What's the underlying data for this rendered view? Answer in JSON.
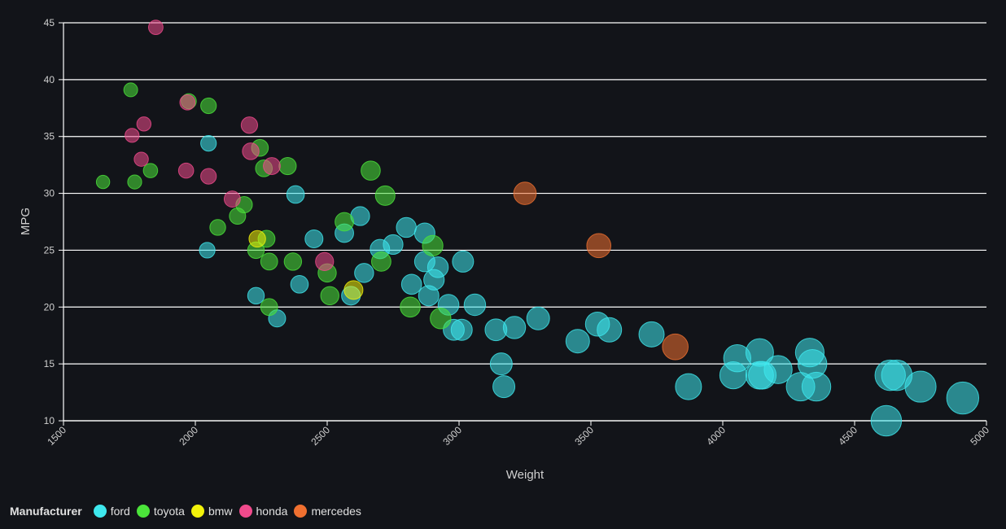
{
  "chart_data": {
    "type": "scatter",
    "xlabel": "Weight",
    "ylabel": "MPG",
    "xlim": [
      1500,
      5000
    ],
    "ylim": [
      10,
      45
    ],
    "x_ticks": [
      "1500",
      "2000",
      "2500",
      "3000",
      "3500",
      "4000",
      "4500",
      "5000"
    ],
    "y_ticks": [
      "10",
      "15",
      "20",
      "25",
      "30",
      "35",
      "40",
      "45"
    ],
    "grid": "horizontal",
    "legend": {
      "title": "Manufacturer",
      "placement": "bottom-left",
      "entries": [
        {
          "name": "ford",
          "color": "#3ee8ee"
        },
        {
          "name": "toyota",
          "color": "#4be43a"
        },
        {
          "name": "bmw",
          "color": "#f2f20a"
        },
        {
          "name": "honda",
          "color": "#f04a8c"
        },
        {
          "name": "mercedes",
          "color": "#f07030"
        }
      ]
    },
    "series": [
      {
        "name": "ford",
        "color": "#3ee8ee",
        "points": [
          [
            2050,
            34.4
          ],
          [
            2045,
            25
          ],
          [
            2230,
            21
          ],
          [
            2310,
            19
          ],
          [
            2380,
            29.9
          ],
          [
            2395,
            22
          ],
          [
            2450,
            26
          ],
          [
            2565,
            26.5
          ],
          [
            2590,
            21
          ],
          [
            2625,
            28
          ],
          [
            2640,
            23
          ],
          [
            2700,
            25.1
          ],
          [
            2750,
            25.5
          ],
          [
            2800,
            27
          ],
          [
            2820,
            22
          ],
          [
            2870,
            24
          ],
          [
            2870,
            26.5
          ],
          [
            2885,
            21
          ],
          [
            2905,
            22.4
          ],
          [
            2920,
            23.5
          ],
          [
            2960,
            20.2
          ],
          [
            2980,
            18
          ],
          [
            3010,
            18
          ],
          [
            3015,
            24
          ],
          [
            3060,
            20.2
          ],
          [
            3140,
            18
          ],
          [
            3160,
            15
          ],
          [
            3170,
            13
          ],
          [
            3210,
            18.2
          ],
          [
            3300,
            19
          ],
          [
            3450,
            17
          ],
          [
            3525,
            18.5
          ],
          [
            3570,
            18
          ],
          [
            3730,
            17.6
          ],
          [
            3870,
            13
          ],
          [
            4040,
            14
          ],
          [
            4055,
            15.5
          ],
          [
            4140,
            14
          ],
          [
            4140,
            16
          ],
          [
            4150,
            14
          ],
          [
            4210,
            14.5
          ],
          [
            4295,
            13
          ],
          [
            4330,
            16
          ],
          [
            4340,
            15
          ],
          [
            4355,
            13
          ],
          [
            4620,
            10
          ],
          [
            4635,
            14
          ],
          [
            4660,
            14
          ],
          [
            4750,
            13
          ],
          [
            4910,
            12
          ]
        ]
      },
      {
        "name": "toyota",
        "color": "#4be43a",
        "points": [
          [
            1650,
            31
          ],
          [
            1755,
            39.1
          ],
          [
            1770,
            31
          ],
          [
            1830,
            32
          ],
          [
            1975,
            38.1
          ],
          [
            2050,
            37.7
          ],
          [
            2085,
            27
          ],
          [
            2160,
            28
          ],
          [
            2185,
            29
          ],
          [
            2230,
            25
          ],
          [
            2245,
            34
          ],
          [
            2260,
            32.2
          ],
          [
            2270,
            26
          ],
          [
            2280,
            24
          ],
          [
            2280,
            20
          ],
          [
            2350,
            32.4
          ],
          [
            2370,
            24
          ],
          [
            2500,
            23
          ],
          [
            2510,
            21
          ],
          [
            2565,
            27.5
          ],
          [
            2665,
            32
          ],
          [
            2705,
            24
          ],
          [
            2720,
            29.8
          ],
          [
            2815,
            20
          ],
          [
            2900,
            25.4
          ],
          [
            2930,
            19
          ]
        ]
      },
      {
        "name": "bmw",
        "color": "#f2f20a",
        "points": [
          [
            2235,
            26
          ],
          [
            2600,
            21.5
          ]
        ]
      },
      {
        "name": "honda",
        "color": "#f04a8c",
        "points": [
          [
            1760,
            35.1
          ],
          [
            1795,
            33
          ],
          [
            1805,
            36.1
          ],
          [
            1850,
            44.6
          ],
          [
            1965,
            32
          ],
          [
            1970,
            38
          ],
          [
            2050,
            31.5
          ],
          [
            2140,
            29.5
          ],
          [
            2205,
            36
          ],
          [
            2210,
            33.7
          ],
          [
            2290,
            32.4
          ],
          [
            2490,
            24
          ]
        ]
      },
      {
        "name": "mercedes",
        "color": "#f07030",
        "points": [
          [
            3250,
            30
          ],
          [
            3530,
            25.4
          ],
          [
            3820,
            16.5
          ]
        ]
      }
    ]
  }
}
